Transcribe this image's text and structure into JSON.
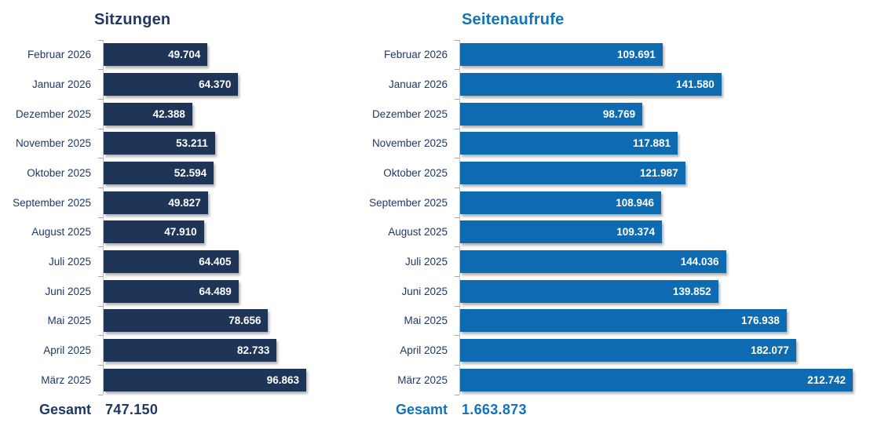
{
  "chart_data": [
    {
      "type": "bar",
      "orientation": "horizontal",
      "title": "Sitzungen",
      "categories": [
        "Februar 2026",
        "Januar 2026",
        "Dezember 2025",
        "November 2025",
        "Oktober 2025",
        "September 2025",
        "August 2025",
        "Juli 2025",
        "Juni 2025",
        "Mai 2025",
        "April 2025",
        "März 2025"
      ],
      "values": [
        49704,
        64370,
        42388,
        53211,
        52594,
        49827,
        47910,
        64405,
        64489,
        78656,
        82733,
        96863
      ],
      "value_labels": [
        "49.704",
        "64.370",
        "42.388",
        "53.211",
        "52.594",
        "49.827",
        "47.910",
        "64.405",
        "64.489",
        "78.656",
        "82.733",
        "96.863"
      ],
      "total": {
        "label": "Gesamt",
        "value": "747.150"
      },
      "colors": {
        "bar": "#1F3557",
        "title": "#1F3864",
        "category": "#203864",
        "total": "#1F3864",
        "value_text": "#FFFFFF"
      },
      "legend": "none",
      "value_axis": "hidden",
      "grid": false
    },
    {
      "type": "bar",
      "orientation": "horizontal",
      "title": "Seitenaufrufe",
      "categories": [
        "Februar 2026",
        "Januar 2026",
        "Dezember 2025",
        "November 2025",
        "Oktober 2025",
        "September 2025",
        "August 2025",
        "Juli 2025",
        "Juni 2025",
        "Mai 2025",
        "April 2025",
        "März 2025"
      ],
      "values": [
        109691,
        141580,
        98769,
        117881,
        121987,
        108946,
        109374,
        144036,
        139852,
        176938,
        182077,
        212742
      ],
      "value_labels": [
        "109.691",
        "141.580",
        "98.769",
        "117.881",
        "121.987",
        "108.946",
        "109.374",
        "144.036",
        "139.852",
        "176.938",
        "182.077",
        "212.742"
      ],
      "total": {
        "label": "Gesamt",
        "value": "1.663.873"
      },
      "colors": {
        "bar": "#0E6BB2",
        "title": "#1272BA",
        "category": "#203864",
        "total": "#1272BA",
        "value_text": "#FFFFFF"
      },
      "legend": "none",
      "value_axis": "hidden",
      "grid": false
    }
  ]
}
